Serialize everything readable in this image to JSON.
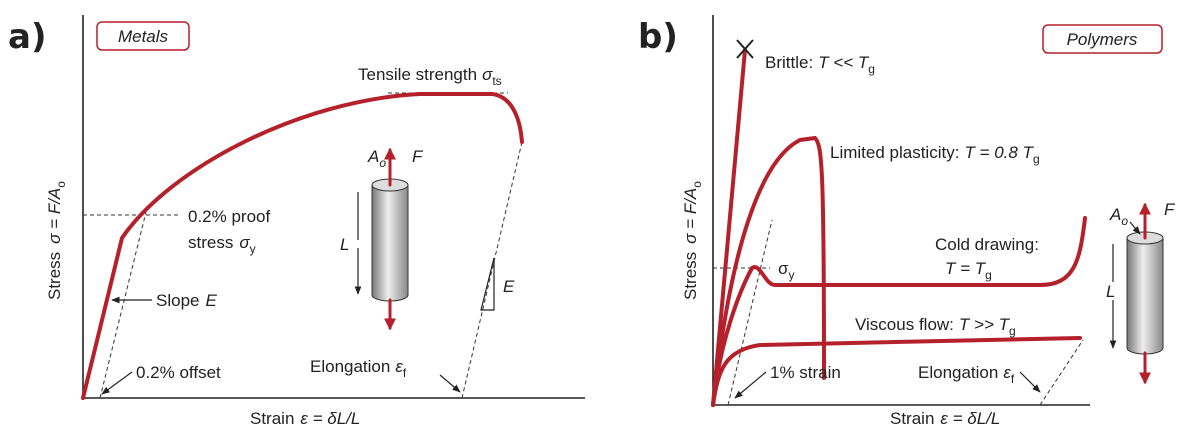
{
  "panel_a": {
    "letter": "a)",
    "tag": "Metals",
    "y_axis": [
      "Stress",
      "σ = F/A",
      "o"
    ],
    "x_axis": [
      "Strain",
      "ε = δL/L"
    ],
    "tensile": [
      "Tensile strength",
      "σ",
      "ts"
    ],
    "proof": [
      "0.2% proof",
      "stress",
      "σ",
      "y"
    ],
    "slope": [
      "Slope",
      "E"
    ],
    "offset": "0.2% offset",
    "elongation": [
      "Elongation",
      "ε",
      "f"
    ],
    "modulus": "E",
    "specimen": {
      "area": [
        "A",
        "o"
      ],
      "force": "F",
      "length": "L"
    }
  },
  "panel_b": {
    "letter": "b)",
    "tag": "Polymers",
    "y_axis": [
      "Stress",
      "σ = F/A",
      "o"
    ],
    "x_axis": [
      "Strain",
      "ε = δL/L"
    ],
    "brittle": [
      "Brittle:",
      "T << T",
      "g"
    ],
    "limited": [
      "Limited plasticity:",
      "T = 0.8 T",
      "g"
    ],
    "cold": [
      "Cold drawing:",
      "T = T",
      "g"
    ],
    "yield": [
      "σ",
      "y"
    ],
    "viscous": [
      "Viscous flow:",
      "T >> T",
      "g"
    ],
    "strain": "1% strain",
    "elongation": [
      "Elongation",
      "ε",
      "f"
    ],
    "specimen": {
      "area": [
        "A",
        "o"
      ],
      "force": "F",
      "length": "L"
    }
  }
}
